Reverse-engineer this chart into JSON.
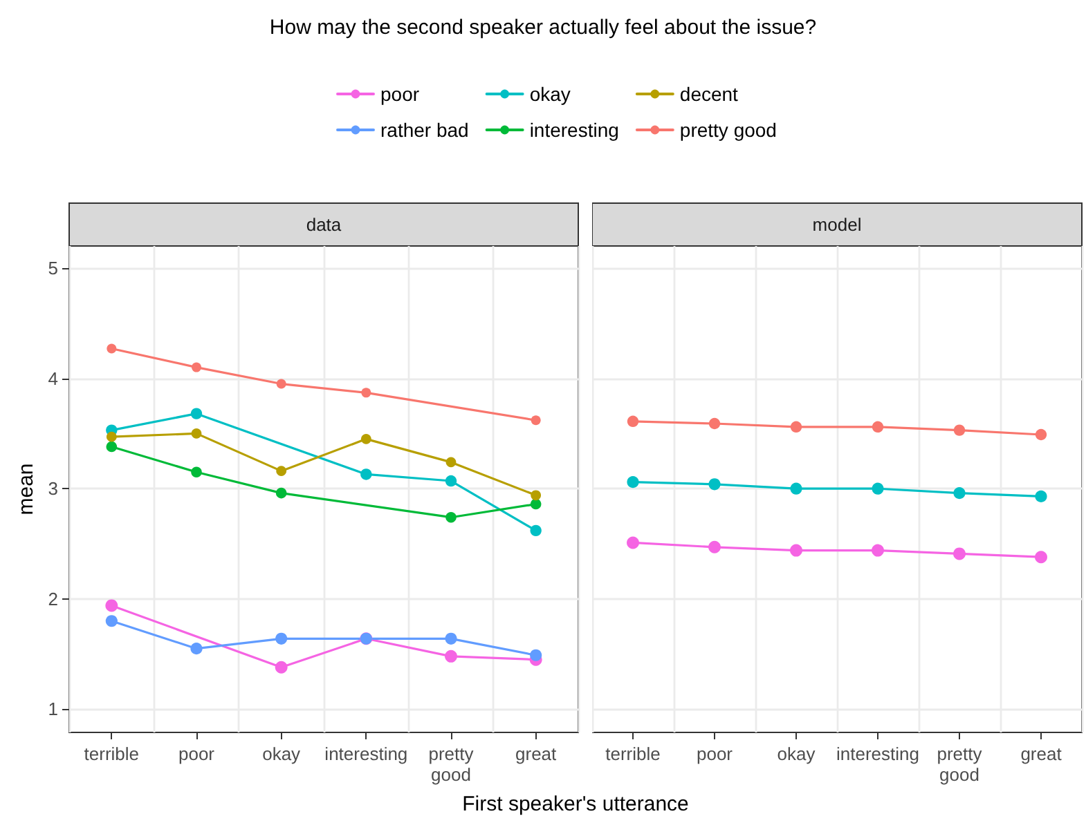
{
  "chart_data": [
    {
      "type": "line",
      "title": "data",
      "annotations": [
        "How may the second speaker actually feel about the issue?"
      ],
      "xlabel": "First speaker's utterance",
      "ylabel": "mean",
      "categories": [
        "terrible",
        "poor",
        "okay",
        "interesting",
        "pretty\ngood",
        "great"
      ],
      "ylim": [
        0.79,
        5.2
      ],
      "yticks": [
        1,
        2,
        3,
        4,
        5
      ],
      "grid": true,
      "legend": "top",
      "marker": "circle",
      "line_style": "solid",
      "series": [
        {
          "name": "poor",
          "color": "#f564e3",
          "values": [
            1.94,
            null,
            1.38,
            1.64,
            1.48,
            1.45
          ]
        },
        {
          "name": "rather bad",
          "color": "#619cff",
          "values": [
            1.8,
            1.55,
            1.64,
            1.64,
            1.64,
            1.49
          ]
        },
        {
          "name": "okay",
          "color": "#00bfc4",
          "values": [
            3.53,
            3.68,
            null,
            3.13,
            3.07,
            2.62
          ]
        },
        {
          "name": "interesting",
          "color": "#00ba38",
          "values": [
            3.38,
            3.15,
            2.96,
            null,
            2.74,
            2.86
          ]
        },
        {
          "name": "decent",
          "color": "#b79f00",
          "values": [
            3.47,
            3.5,
            3.16,
            3.45,
            3.24,
            2.94
          ]
        },
        {
          "name": "pretty good",
          "color": "#f8766d",
          "values": [
            4.27,
            4.1,
            3.95,
            3.87,
            null,
            3.62
          ]
        }
      ]
    },
    {
      "type": "line",
      "title": "model",
      "categories": [
        "terrible",
        "poor",
        "okay",
        "interesting",
        "pretty\ngood",
        "great"
      ],
      "ylim": [
        0.79,
        5.2
      ],
      "yticks": [
        1,
        2,
        3,
        4,
        5
      ],
      "grid": true,
      "tick_labels": "x",
      "marker": "circle",
      "line_style": "solid",
      "series": [
        {
          "color": "#f564e3",
          "values": [
            2.51,
            2.47,
            2.44,
            2.44,
            2.41,
            2.38
          ]
        },
        {
          "color": "#00bfc4",
          "values": [
            3.06,
            3.04,
            3.0,
            3.0,
            2.96,
            2.93
          ]
        },
        {
          "color": "#f8766d",
          "values": [
            3.61,
            3.59,
            3.56,
            3.56,
            3.53,
            3.49
          ]
        }
      ]
    }
  ]
}
